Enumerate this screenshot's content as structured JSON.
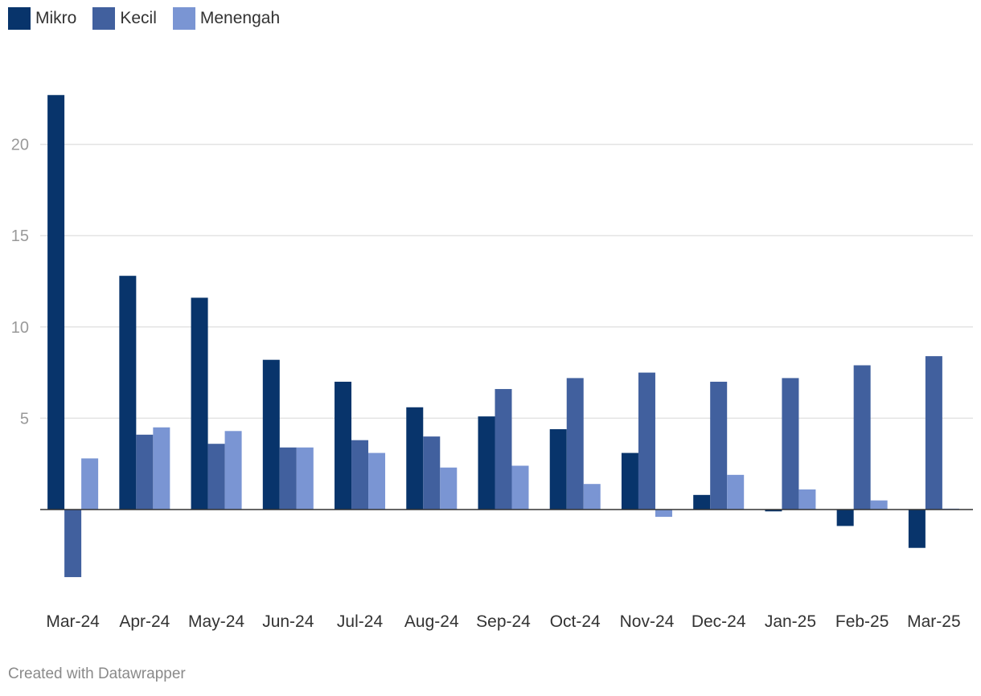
{
  "chart_data": {
    "type": "bar",
    "categories": [
      "Mar-24",
      "Apr-24",
      "May-24",
      "Jun-24",
      "Jul-24",
      "Aug-24",
      "Sep-24",
      "Oct-24",
      "Nov-24",
      "Dec-24",
      "Jan-25",
      "Feb-25",
      "Mar-25"
    ],
    "series": [
      {
        "name": "Mikro",
        "color": "#08346b",
        "values": [
          22.7,
          12.8,
          11.6,
          8.2,
          7.0,
          5.6,
          5.1,
          4.4,
          3.1,
          0.8,
          -0.1,
          -0.9,
          -2.1
        ]
      },
      {
        "name": "Kecil",
        "color": "#41609e",
        "values": [
          -3.7,
          4.1,
          3.6,
          3.4,
          3.8,
          4.0,
          6.6,
          7.2,
          7.5,
          7.0,
          7.2,
          7.9,
          8.4
        ]
      },
      {
        "name": "Menengah",
        "color": "#7a95d3",
        "values": [
          2.8,
          4.5,
          4.3,
          3.4,
          3.1,
          2.3,
          2.4,
          1.4,
          -0.4,
          1.9,
          1.1,
          0.5,
          0.05
        ]
      }
    ],
    "y_ticks": [
      "5",
      "10",
      "15",
      "20"
    ],
    "ylim": [
      -4.5,
      24
    ],
    "grid": true,
    "legend_position": "top-left",
    "title": "",
    "xlabel": "",
    "ylabel": ""
  },
  "footer": {
    "credit": "Created with Datawrapper"
  }
}
